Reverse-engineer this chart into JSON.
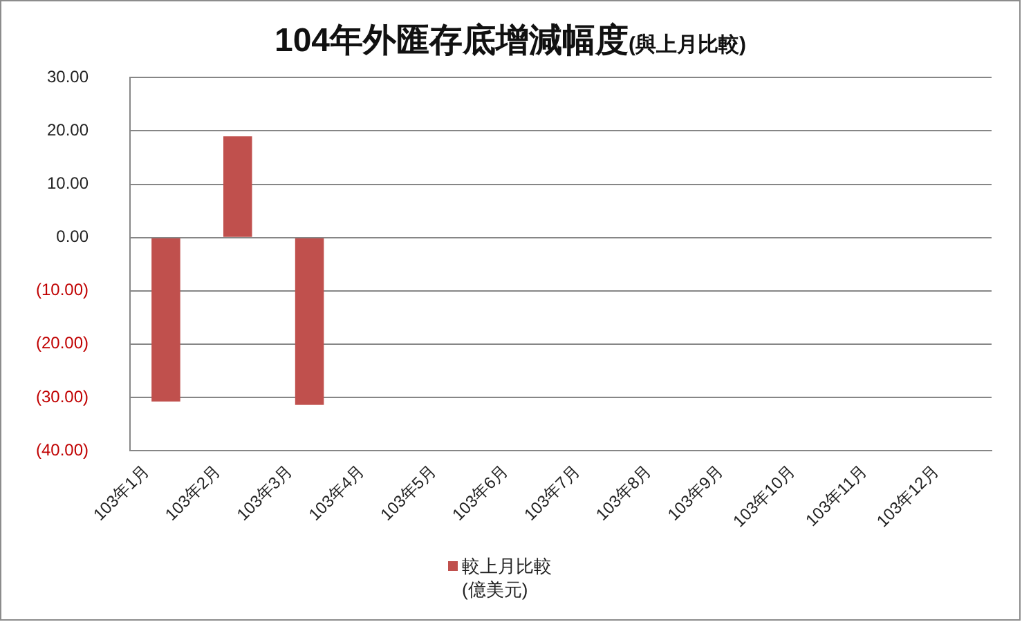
{
  "chart_data": {
    "type": "bar",
    "title": "104年外匯存底增減幅度",
    "subtitle": "(與上月比較)",
    "categories": [
      "103年1月",
      "103年2月",
      "103年3月",
      "103年4月",
      "103年5月",
      "103年6月",
      "103年7月",
      "103年8月",
      "103年9月",
      "103年10月",
      "103年11月",
      "103年12月"
    ],
    "series": [
      {
        "name": "較上月比較 (億美元)",
        "color": "#c0504d",
        "values": [
          -30.8,
          19.0,
          -31.4,
          null,
          null,
          null,
          null,
          null,
          null,
          null,
          null,
          null
        ]
      }
    ],
    "ylim": [
      -40,
      30
    ],
    "yticks": [
      {
        "value": -40,
        "label": "(40.00)"
      },
      {
        "value": -30,
        "label": "(30.00)"
      },
      {
        "value": -20,
        "label": "(20.00)"
      },
      {
        "value": -10,
        "label": "(10.00)"
      },
      {
        "value": 0,
        "label": "0.00"
      },
      {
        "value": 10,
        "label": "10.00"
      },
      {
        "value": 20,
        "label": "20.00"
      },
      {
        "value": 30,
        "label": "30.00"
      }
    ],
    "grid": "y",
    "legend": "bottom"
  }
}
